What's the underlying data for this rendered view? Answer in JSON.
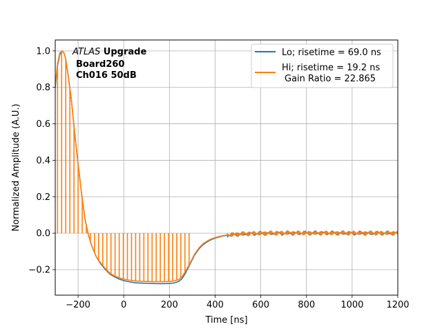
{
  "chart_data": {
    "type": "line",
    "title": "",
    "xlabel": "Time [ns]",
    "ylabel": "Normalized Amplitude (A.U.)",
    "xlim": [
      -300,
      1200
    ],
    "ylim": [
      -0.34,
      1.06
    ],
    "xticks": [
      -200,
      0,
      200,
      400,
      600,
      800,
      1000,
      1200
    ],
    "yticks": [
      -0.2,
      0.0,
      0.2,
      0.4,
      0.6,
      0.8,
      1.0
    ],
    "xtick_labels": [
      "−200",
      "0",
      "200",
      "400",
      "600",
      "800",
      "1000",
      "1200"
    ],
    "ytick_labels": [
      "−0.2",
      "0.0",
      "0.2",
      "0.4",
      "0.6",
      "0.8",
      "1.0"
    ],
    "grid": true,
    "legend_position": "top-right",
    "annotation": {
      "line1_italic": "ATLAS",
      "line1_bold": " Upgrade",
      "line2": "Board260",
      "line3": "Ch016 50dB"
    },
    "series": [
      {
        "name": "Lo; risetime = 69.0 ns",
        "color": "#1f77b4",
        "style": "line",
        "x": [
          -300,
          -290,
          -280,
          -270,
          -262,
          -255,
          -245,
          -230,
          -215,
          -200,
          -185,
          -170,
          -155,
          -140,
          -120,
          -100,
          -80,
          -60,
          -40,
          -20,
          0,
          25,
          50,
          75,
          100,
          125,
          150,
          175,
          200,
          220,
          240,
          255,
          270,
          290,
          310,
          330,
          350,
          375,
          400,
          425,
          450,
          500,
          550,
          600,
          700,
          800,
          900,
          1000,
          1100,
          1200
        ],
        "y": [
          0.8,
          0.92,
          0.98,
          1.0,
          0.99,
          0.96,
          0.88,
          0.74,
          0.55,
          0.38,
          0.22,
          0.08,
          -0.01,
          -0.07,
          -0.13,
          -0.17,
          -0.2,
          -0.225,
          -0.24,
          -0.252,
          -0.26,
          -0.267,
          -0.272,
          -0.274,
          -0.275,
          -0.276,
          -0.277,
          -0.277,
          -0.276,
          -0.273,
          -0.265,
          -0.25,
          -0.22,
          -0.17,
          -0.12,
          -0.085,
          -0.06,
          -0.04,
          -0.027,
          -0.018,
          -0.012,
          -0.006,
          -0.003,
          -0.001,
          0.0,
          0.001,
          0.001,
          0.0,
          0.0,
          0.0
        ]
      },
      {
        "name": "Hi; risetime = 19.2 ns",
        "name_line2": "Gain Ratio = 22.865",
        "color": "#ff7f0e",
        "style": "line-with-zero-spikes",
        "x": [
          -300,
          -290,
          -280,
          -270,
          -262,
          -255,
          -245,
          -230,
          -215,
          -200,
          -185,
          -170,
          -155,
          -140,
          -120,
          -100,
          -80,
          -60,
          -40,
          -20,
          0,
          25,
          50,
          75,
          100,
          125,
          150,
          175,
          200,
          220,
          240,
          255,
          270,
          290,
          310,
          330,
          350,
          375,
          400,
          425,
          450,
          500,
          550,
          600,
          700,
          800,
          900,
          1000,
          1100,
          1200
        ],
        "y": [
          0.81,
          0.93,
          0.99,
          1.0,
          0.99,
          0.96,
          0.88,
          0.74,
          0.55,
          0.38,
          0.22,
          0.08,
          -0.01,
          -0.07,
          -0.13,
          -0.165,
          -0.195,
          -0.22,
          -0.235,
          -0.245,
          -0.252,
          -0.258,
          -0.262,
          -0.264,
          -0.265,
          -0.266,
          -0.266,
          -0.266,
          -0.265,
          -0.262,
          -0.255,
          -0.24,
          -0.21,
          -0.165,
          -0.115,
          -0.08,
          -0.055,
          -0.036,
          -0.024,
          -0.016,
          -0.01,
          -0.005,
          -0.002,
          0.0,
          0.001,
          0.001,
          0.001,
          0.001,
          0.001,
          0.001
        ]
      }
    ]
  }
}
